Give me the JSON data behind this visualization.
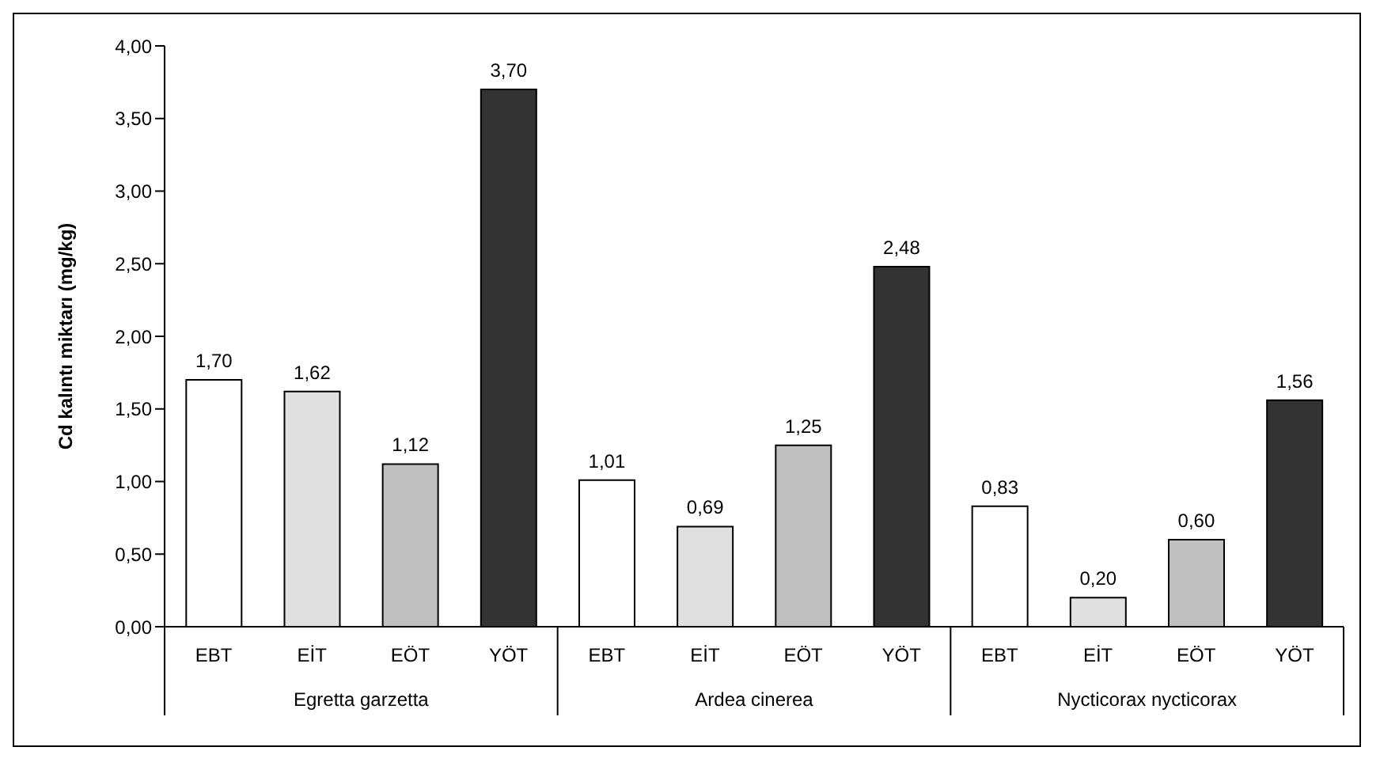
{
  "chart_data": {
    "type": "bar",
    "ylabel": "Cd kalıntı miktarı (mg/kg)",
    "categories": [
      "EBT",
      "EİT",
      "EÖT",
      "YÖT",
      "EBT",
      "EİT",
      "EÖT",
      "YÖT",
      "EBT",
      "EİT",
      "EÖT",
      "YÖT"
    ],
    "values": [
      1.7,
      1.62,
      1.12,
      3.7,
      1.01,
      0.69,
      1.25,
      2.48,
      0.83,
      0.2,
      0.6,
      1.56
    ],
    "value_labels": [
      "1,70",
      "1,62",
      "1,12",
      "3,70",
      "1,01",
      "0,69",
      "1,25",
      "2,48",
      "0,83",
      "0,20",
      "0,60",
      "1,56"
    ],
    "colors": [
      "#ffffff",
      "#e0e0e0",
      "#c0c0c0",
      "#333333",
      "#ffffff",
      "#e0e0e0",
      "#c0c0c0",
      "#333333",
      "#ffffff",
      "#e0e0e0",
      "#c0c0c0",
      "#333333"
    ],
    "ylim": [
      0,
      4
    ],
    "yticks": [
      {
        "value": 0,
        "label": "0,00"
      },
      {
        "value": 0.5,
        "label": "0,50"
      },
      {
        "value": 1,
        "label": "1,00"
      },
      {
        "value": 1.5,
        "label": "1,50"
      },
      {
        "value": 2,
        "label": "2,00"
      },
      {
        "value": 2.5,
        "label": "2,50"
      },
      {
        "value": 3,
        "label": "3,00"
      },
      {
        "value": 3.5,
        "label": "3,50"
      },
      {
        "value": 4,
        "label": "4,00"
      }
    ],
    "annotations": [
      "Egretta garzetta",
      "Ardea cinerea",
      "Nycticorax nycticorax"
    ],
    "grid": false,
    "legend": false
  }
}
